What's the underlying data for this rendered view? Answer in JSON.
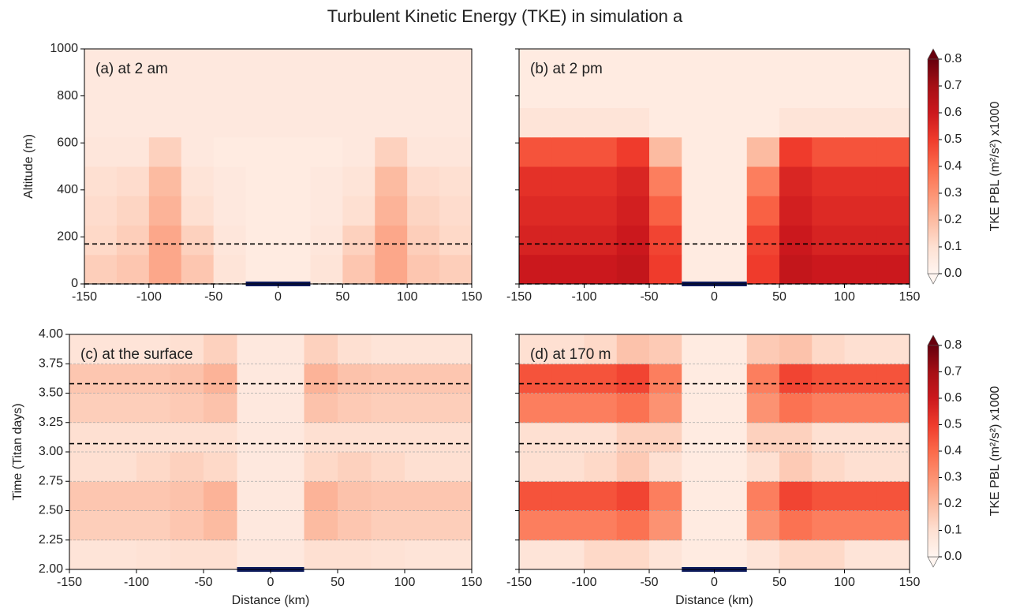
{
  "title": "Turbulent Kinetic Energy (TKE) in simulation a",
  "colorbar": {
    "label": "TKE PBL (m²/s²) x1000",
    "lim": [
      0,
      0.8
    ],
    "ticks": [
      {
        "value": 0,
        "label": "0.0"
      },
      {
        "value": 0.1,
        "label": "0.1"
      },
      {
        "value": 0.2,
        "label": "0.2"
      },
      {
        "value": 0.3,
        "label": "0.3"
      },
      {
        "value": 0.4,
        "label": "0.4"
      },
      {
        "value": 0.5,
        "label": "0.5"
      },
      {
        "value": 0.6,
        "label": "0.6"
      },
      {
        "value": 0.7,
        "label": "0.7"
      },
      {
        "value": 0.8,
        "label": "0.8"
      }
    ],
    "colors": [
      "#fff5f0",
      "#fee0d2",
      "#fcbba1",
      "#fc9272",
      "#fb6a4a",
      "#ef3b2c",
      "#cb181d",
      "#a50f15",
      "#67000d"
    ]
  },
  "chart_data": [
    {
      "type": "heatmap",
      "label": "(a) at 2 am",
      "ylabel": "Altitude (m)",
      "show_ytick_labels": true,
      "grid": false,
      "xlim": [
        -150,
        150
      ],
      "xticks": [
        -150,
        -100,
        -50,
        0,
        50,
        100,
        150
      ],
      "ylim": [
        0,
        1000
      ],
      "yticks": [
        0,
        200,
        400,
        600,
        800,
        1000
      ],
      "hlines": [
        170,
        0
      ],
      "surface_bar": {
        "x": [
          -25,
          25
        ],
        "color": "#0d1a5c"
      },
      "x_edges": [
        -150,
        -125,
        -100,
        -75,
        -50,
        -25,
        0,
        25,
        50,
        75,
        100,
        125,
        150
      ],
      "y_edges": [
        0,
        125,
        250,
        375,
        500,
        625,
        750,
        875,
        1000
      ],
      "z": [
        [
          0.15,
          0.17,
          0.25,
          0.17,
          0.08,
          0.05,
          0.05,
          0.08,
          0.17,
          0.25,
          0.17,
          0.15
        ],
        [
          0.12,
          0.15,
          0.25,
          0.14,
          0.07,
          0.05,
          0.05,
          0.07,
          0.14,
          0.25,
          0.15,
          0.12
        ],
        [
          0.11,
          0.13,
          0.22,
          0.1,
          0.06,
          0.05,
          0.05,
          0.06,
          0.1,
          0.22,
          0.13,
          0.11
        ],
        [
          0.1,
          0.11,
          0.2,
          0.08,
          0.06,
          0.05,
          0.05,
          0.06,
          0.08,
          0.2,
          0.11,
          0.1
        ],
        [
          0.07,
          0.07,
          0.14,
          0.06,
          0.05,
          0.05,
          0.05,
          0.05,
          0.06,
          0.14,
          0.07,
          0.07
        ],
        [
          0.06,
          0.06,
          0.06,
          0.06,
          0.06,
          0.06,
          0.06,
          0.06,
          0.06,
          0.06,
          0.06,
          0.06
        ],
        [
          0.06,
          0.06,
          0.06,
          0.06,
          0.06,
          0.06,
          0.06,
          0.06,
          0.06,
          0.06,
          0.06,
          0.06
        ],
        [
          0.06,
          0.06,
          0.06,
          0.06,
          0.06,
          0.06,
          0.06,
          0.06,
          0.06,
          0.06,
          0.06,
          0.06
        ]
      ]
    },
    {
      "type": "heatmap",
      "label": "(b) at 2 pm",
      "show_ytick_labels": false,
      "grid": false,
      "xlim": [
        -150,
        150
      ],
      "xticks": [
        -150,
        -100,
        -50,
        0,
        50,
        100,
        150
      ],
      "ylim": [
        0,
        1000
      ],
      "yticks": [
        0,
        200,
        400,
        600,
        800,
        1000
      ],
      "hlines": [
        170,
        0
      ],
      "surface_bar": {
        "x": [
          -25,
          25
        ],
        "color": "#0d1a5c"
      },
      "x_edges": [
        -150,
        -125,
        -100,
        -75,
        -50,
        -25,
        0,
        25,
        50,
        75,
        100,
        125,
        150
      ],
      "y_edges": [
        0,
        125,
        250,
        375,
        500,
        625,
        750,
        875,
        1000
      ],
      "z": [
        [
          0.6,
          0.6,
          0.6,
          0.62,
          0.5,
          0.05,
          0.05,
          0.5,
          0.62,
          0.6,
          0.6,
          0.6
        ],
        [
          0.57,
          0.57,
          0.57,
          0.6,
          0.48,
          0.05,
          0.05,
          0.48,
          0.6,
          0.57,
          0.57,
          0.57
        ],
        [
          0.55,
          0.55,
          0.55,
          0.58,
          0.42,
          0.05,
          0.05,
          0.42,
          0.58,
          0.55,
          0.55,
          0.55
        ],
        [
          0.53,
          0.53,
          0.53,
          0.56,
          0.35,
          0.05,
          0.05,
          0.35,
          0.56,
          0.53,
          0.53,
          0.53
        ],
        [
          0.45,
          0.45,
          0.45,
          0.5,
          0.2,
          0.05,
          0.05,
          0.2,
          0.5,
          0.45,
          0.45,
          0.45
        ],
        [
          0.08,
          0.08,
          0.08,
          0.08,
          0.05,
          0.05,
          0.05,
          0.05,
          0.08,
          0.08,
          0.08,
          0.08
        ],
        [
          0.05,
          0.05,
          0.05,
          0.05,
          0.05,
          0.05,
          0.05,
          0.05,
          0.05,
          0.05,
          0.05,
          0.05
        ],
        [
          0.05,
          0.05,
          0.05,
          0.05,
          0.05,
          0.05,
          0.05,
          0.05,
          0.05,
          0.05,
          0.05,
          0.05
        ]
      ]
    },
    {
      "type": "heatmap",
      "label": "(c) at the surface",
      "xlabel": "Distance (km)",
      "ylabel": "Time (Titan days)",
      "show_ytick_labels": true,
      "grid": true,
      "xlim": [
        -150,
        150
      ],
      "xticks": [
        -150,
        -100,
        -50,
        0,
        50,
        100,
        150
      ],
      "ylim": [
        2,
        4
      ],
      "yticks": [
        {
          "value": 2,
          "label": "2.00"
        },
        {
          "value": 2.25,
          "label": "2.25"
        },
        {
          "value": 2.5,
          "label": "2.50"
        },
        {
          "value": 2.75,
          "label": "2.75"
        },
        {
          "value": 3,
          "label": "3.00"
        },
        {
          "value": 3.25,
          "label": "3.25"
        },
        {
          "value": 3.5,
          "label": "3.50"
        },
        {
          "value": 3.75,
          "label": "3.75"
        },
        {
          "value": 4,
          "label": "4.00"
        }
      ],
      "hlines": [
        3.58,
        3.07
      ],
      "surface_bar": {
        "x": [
          -25,
          25
        ],
        "color": "#0d1a5c"
      },
      "x_edges": [
        -150,
        -125,
        -100,
        -75,
        -50,
        -25,
        0,
        25,
        50,
        75,
        100,
        125,
        150
      ],
      "y_edges": [
        2,
        2.25,
        2.5,
        2.75,
        3,
        3.25,
        3.5,
        3.75,
        4
      ],
      "z": [
        [
          0.08,
          0.08,
          0.09,
          0.1,
          0.1,
          0.06,
          0.06,
          0.1,
          0.1,
          0.09,
          0.08,
          0.08
        ],
        [
          0.15,
          0.15,
          0.15,
          0.17,
          0.2,
          0.06,
          0.06,
          0.2,
          0.17,
          0.15,
          0.15,
          0.15
        ],
        [
          0.17,
          0.17,
          0.17,
          0.18,
          0.22,
          0.06,
          0.06,
          0.22,
          0.18,
          0.17,
          0.17,
          0.17
        ],
        [
          0.1,
          0.1,
          0.12,
          0.14,
          0.12,
          0.06,
          0.06,
          0.12,
          0.14,
          0.12,
          0.1,
          0.1
        ],
        [
          0.1,
          0.1,
          0.1,
          0.1,
          0.1,
          0.06,
          0.06,
          0.1,
          0.1,
          0.1,
          0.1,
          0.1
        ],
        [
          0.15,
          0.15,
          0.15,
          0.16,
          0.18,
          0.06,
          0.06,
          0.18,
          0.16,
          0.15,
          0.15,
          0.15
        ],
        [
          0.17,
          0.17,
          0.17,
          0.18,
          0.22,
          0.06,
          0.06,
          0.22,
          0.18,
          0.17,
          0.17,
          0.17
        ],
        [
          0.08,
          0.08,
          0.08,
          0.1,
          0.14,
          0.06,
          0.06,
          0.14,
          0.1,
          0.08,
          0.08,
          0.08
        ]
      ]
    },
    {
      "type": "heatmap",
      "label": "(d) at 170 m",
      "xlabel": "Distance (km)",
      "show_ytick_labels": false,
      "grid": true,
      "xlim": [
        -150,
        150
      ],
      "xticks": [
        -150,
        -100,
        -50,
        0,
        50,
        100,
        150
      ],
      "ylim": [
        2,
        4
      ],
      "yticks": [
        {
          "value": 2,
          "label": "2.00"
        },
        {
          "value": 2.25,
          "label": "2.25"
        },
        {
          "value": 2.5,
          "label": "2.50"
        },
        {
          "value": 2.75,
          "label": "2.75"
        },
        {
          "value": 3,
          "label": "3.00"
        },
        {
          "value": 3.25,
          "label": "3.25"
        },
        {
          "value": 3.5,
          "label": "3.50"
        },
        {
          "value": 3.75,
          "label": "3.75"
        },
        {
          "value": 4,
          "label": "4.00"
        }
      ],
      "hlines": [
        3.58,
        3.07
      ],
      "surface_bar": {
        "x": [
          -25,
          25
        ],
        "color": "#0d1a5c"
      },
      "x_edges": [
        -150,
        -125,
        -100,
        -75,
        -50,
        -25,
        0,
        25,
        50,
        75,
        100,
        125,
        150
      ],
      "y_edges": [
        2,
        2.25,
        2.5,
        2.75,
        3,
        3.25,
        3.5,
        3.75,
        4
      ],
      "z": [
        [
          0.08,
          0.08,
          0.12,
          0.12,
          0.08,
          0.05,
          0.05,
          0.08,
          0.12,
          0.12,
          0.08,
          0.08
        ],
        [
          0.35,
          0.35,
          0.35,
          0.38,
          0.3,
          0.05,
          0.05,
          0.3,
          0.38,
          0.35,
          0.35,
          0.35
        ],
        [
          0.45,
          0.45,
          0.45,
          0.48,
          0.35,
          0.05,
          0.05,
          0.35,
          0.48,
          0.45,
          0.45,
          0.45
        ],
        [
          0.1,
          0.1,
          0.12,
          0.16,
          0.1,
          0.05,
          0.05,
          0.1,
          0.16,
          0.12,
          0.1,
          0.1
        ],
        [
          0.1,
          0.1,
          0.1,
          0.14,
          0.14,
          0.05,
          0.05,
          0.14,
          0.14,
          0.1,
          0.1,
          0.1
        ],
        [
          0.35,
          0.35,
          0.35,
          0.38,
          0.3,
          0.05,
          0.05,
          0.3,
          0.38,
          0.35,
          0.35,
          0.35
        ],
        [
          0.45,
          0.45,
          0.45,
          0.48,
          0.35,
          0.05,
          0.05,
          0.35,
          0.48,
          0.45,
          0.45,
          0.45
        ],
        [
          0.1,
          0.1,
          0.12,
          0.18,
          0.16,
          0.05,
          0.05,
          0.16,
          0.18,
          0.12,
          0.1,
          0.1
        ]
      ]
    }
  ]
}
